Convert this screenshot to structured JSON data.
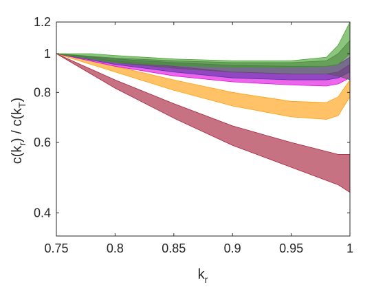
{
  "chart_data": {
    "type": "area",
    "title": "",
    "xlabel": {
      "main": "k",
      "sub": "r"
    },
    "ylabel": {
      "p1": "c(k",
      "s1": "r",
      "p2": ") / c(k",
      "s2": "T",
      "p3": ")"
    },
    "xlim": [
      0.75,
      1.0
    ],
    "ylim": [
      0.35,
      1.2
    ],
    "yscale": "log",
    "xticks": [
      0.75,
      0.8,
      0.85,
      0.9,
      0.95,
      1.0
    ],
    "xtick_labels": [
      "0.75",
      "0.8",
      "0.85",
      "0.9",
      "0.95",
      "1"
    ],
    "yticks": [
      0.4,
      0.6,
      0.8,
      1.0,
      1.2
    ],
    "ytick_labels": [
      "0.4",
      "0.6",
      "0.8",
      "1",
      "1.2"
    ],
    "grid": false,
    "legend": "none",
    "series": [
      {
        "color": "#a2142f",
        "opacity": 0.6,
        "x": [
          0.75,
          0.8,
          0.85,
          0.9,
          0.95,
          0.99,
          1.0
        ],
        "lower": [
          1.0,
          0.82,
          0.69,
          0.59,
          0.52,
          0.47,
          0.45
        ],
        "upper": [
          1.0,
          0.86,
          0.75,
          0.66,
          0.6,
          0.56,
          0.56
        ]
      },
      {
        "color": "#ff9900",
        "opacity": 0.6,
        "x": [
          0.75,
          0.8,
          0.85,
          0.9,
          0.95,
          0.98,
          0.99,
          1.0
        ],
        "lower": [
          1.0,
          0.9,
          0.81,
          0.74,
          0.695,
          0.685,
          0.7,
          0.78
        ],
        "upper": [
          1.0,
          0.93,
          0.86,
          0.8,
          0.76,
          0.755,
          0.78,
          0.86
        ]
      },
      {
        "color": "#dd00dd",
        "opacity": 0.6,
        "x": [
          0.75,
          0.8,
          0.85,
          0.9,
          0.95,
          0.98,
          0.99,
          1.0
        ],
        "lower": [
          1.0,
          0.93,
          0.88,
          0.85,
          0.835,
          0.83,
          0.84,
          0.87
        ],
        "upper": [
          1.0,
          0.96,
          0.93,
          0.9,
          0.89,
          0.89,
          0.9,
          0.94
        ]
      },
      {
        "color": "#4b2c9e",
        "opacity": 0.55,
        "x": [
          0.75,
          0.8,
          0.85,
          0.9,
          0.95,
          0.98,
          0.99,
          1.0
        ],
        "lower": [
          1.0,
          0.94,
          0.9,
          0.87,
          0.86,
          0.86,
          0.87,
          0.9
        ],
        "upper": [
          1.0,
          0.97,
          0.95,
          0.935,
          0.93,
          0.93,
          0.94,
          0.98
        ]
      },
      {
        "color": "#555555",
        "opacity": 0.55,
        "x": [
          0.75,
          0.8,
          0.85,
          0.9,
          0.95,
          0.98,
          0.99,
          1.0
        ],
        "lower": [
          1.0,
          0.95,
          0.92,
          0.9,
          0.89,
          0.89,
          0.88,
          0.86
        ],
        "upper": [
          1.0,
          0.975,
          0.96,
          0.95,
          0.95,
          0.96,
          1.0,
          1.08
        ]
      },
      {
        "color": "#3d9e28",
        "opacity": 0.6,
        "x": [
          0.75,
          0.78,
          0.8,
          0.85,
          0.9,
          0.95,
          0.98,
          0.99,
          1.0
        ],
        "lower": [
          1.0,
          0.97,
          0.95,
          0.935,
          0.925,
          0.925,
          0.93,
          0.94,
          1.0
        ],
        "upper": [
          1.0,
          1.0,
          0.99,
          0.97,
          0.96,
          0.96,
          0.98,
          1.05,
          1.22
        ]
      }
    ]
  }
}
